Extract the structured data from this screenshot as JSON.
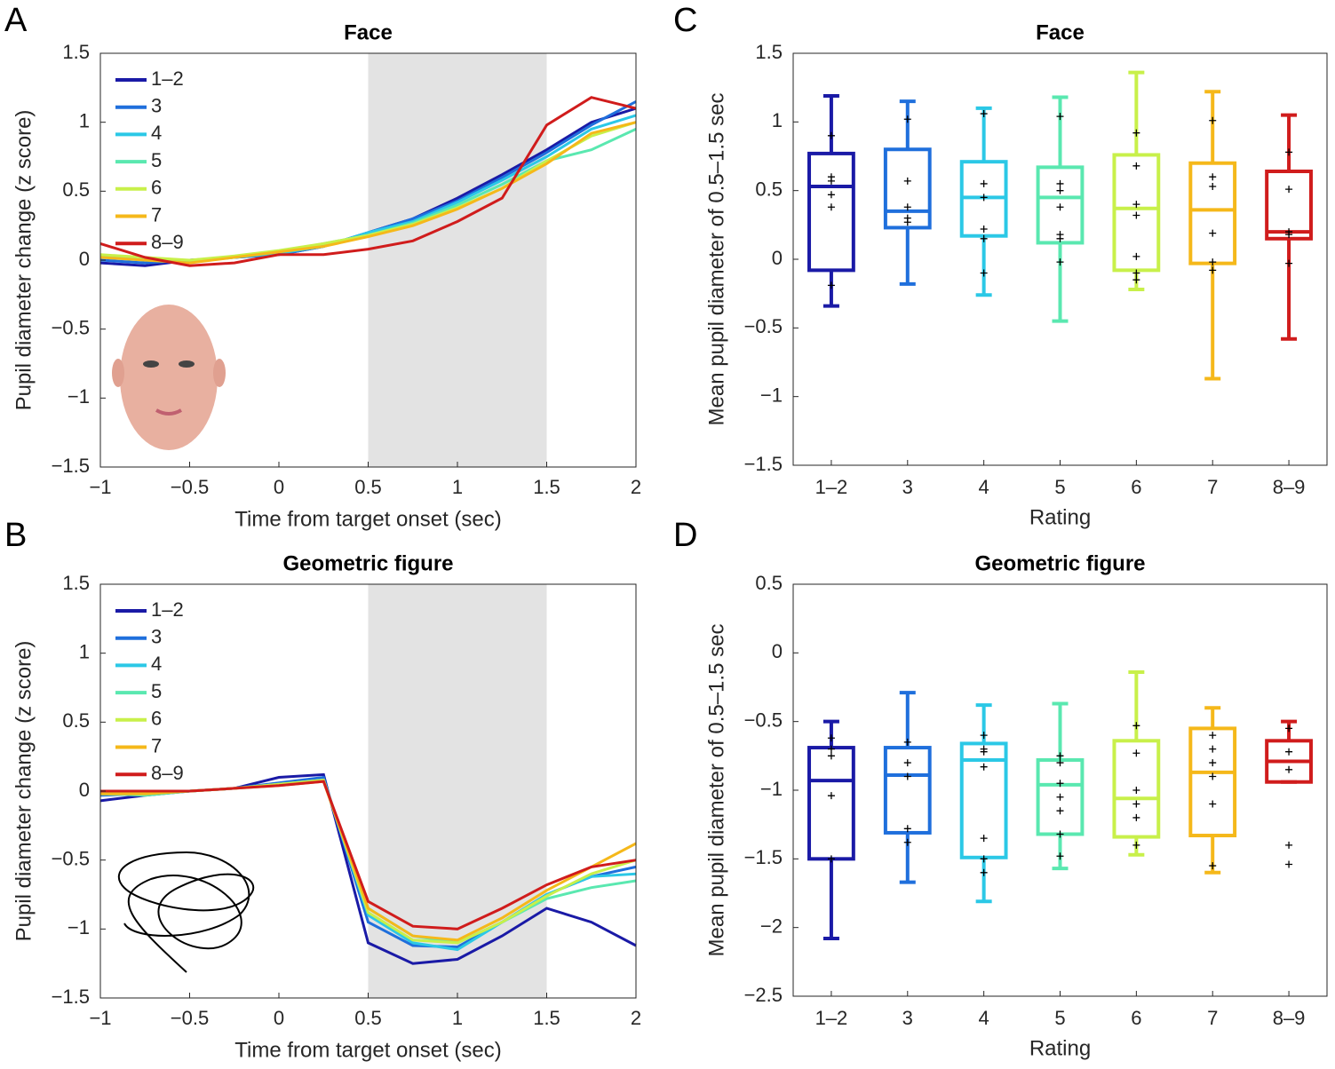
{
  "chart_data": [
    {
      "type": "line",
      "panel": "A",
      "title": "Face",
      "xlabel": "Time from target onset (sec)",
      "ylabel": "Pupil diameter change (z score)",
      "xlim": [
        -1,
        2
      ],
      "ylim": [
        -1.5,
        1.5
      ],
      "xticks": [
        {
          "value": -1,
          "label": "−1"
        },
        {
          "value": -0.5,
          "label": "−0.5"
        },
        0,
        0.5,
        1,
        1.5,
        2
      ],
      "yticks": [
        {
          "value": -1.5,
          "label": "−1.5"
        },
        {
          "value": -1,
          "label": "−1"
        },
        {
          "value": -0.5,
          "label": "−0.5"
        },
        0,
        0.5,
        1,
        1.5
      ],
      "highlight": [
        0.5,
        1.5
      ],
      "legend": "upper left",
      "x": [
        -1,
        -0.75,
        -0.5,
        -0.25,
        0,
        0.25,
        0.5,
        0.75,
        1,
        1.25,
        1.5,
        1.75,
        2
      ],
      "series": [
        {
          "name": "1–2",
          "color": "#1a1aa6",
          "values": [
            -0.02,
            -0.04,
            0,
            0.02,
            0.04,
            0.1,
            0.2,
            0.3,
            0.45,
            0.62,
            0.8,
            1.0,
            1.1
          ]
        },
        {
          "name": "3",
          "color": "#1f6fdc",
          "values": [
            0,
            -0.02,
            0,
            0.02,
            0.04,
            0.1,
            0.2,
            0.3,
            0.43,
            0.6,
            0.78,
            0.98,
            1.15
          ]
        },
        {
          "name": "4",
          "color": "#2bc8e6",
          "values": [
            0.02,
            0,
            -0.01,
            0.02,
            0.05,
            0.1,
            0.2,
            0.28,
            0.42,
            0.58,
            0.75,
            0.95,
            1.05
          ]
        },
        {
          "name": "5",
          "color": "#5ae8b0",
          "values": [
            0.03,
            0,
            -0.01,
            0.02,
            0.06,
            0.12,
            0.18,
            0.27,
            0.4,
            0.55,
            0.72,
            0.8,
            0.95
          ]
        },
        {
          "name": "6",
          "color": "#c8f04a",
          "values": [
            0.04,
            0.02,
            0,
            0.03,
            0.07,
            0.12,
            0.18,
            0.26,
            0.38,
            0.52,
            0.72,
            0.9,
            1.0
          ]
        },
        {
          "name": "7",
          "color": "#f5b81a",
          "values": [
            0.02,
            0,
            -0.02,
            0.02,
            0.06,
            0.1,
            0.17,
            0.25,
            0.37,
            0.52,
            0.7,
            0.92,
            1.0
          ]
        },
        {
          "name": "8–9",
          "color": "#d01c1c",
          "values": [
            0.12,
            0.02,
            -0.04,
            -0.02,
            0.04,
            0.04,
            0.08,
            0.14,
            0.28,
            0.45,
            0.98,
            1.18,
            1.1
          ]
        }
      ]
    },
    {
      "type": "line",
      "panel": "B",
      "title": "Geometric figure",
      "xlabel": "Time from target onset (sec)",
      "ylabel": "Pupil diameter change (z score)",
      "xlim": [
        -1,
        2
      ],
      "ylim": [
        -1.5,
        1.5
      ],
      "xticks": [
        {
          "value": -1,
          "label": "−1"
        },
        {
          "value": -0.5,
          "label": "−0.5"
        },
        0,
        0.5,
        1,
        1.5,
        2
      ],
      "yticks": [
        {
          "value": -1.5,
          "label": "−1.5"
        },
        {
          "value": -1,
          "label": "−1"
        },
        {
          "value": -0.5,
          "label": "−0.5"
        },
        0,
        0.5,
        1,
        1.5
      ],
      "highlight": [
        0.5,
        1.5
      ],
      "legend": "upper left",
      "x": [
        -1,
        -0.75,
        -0.5,
        -0.25,
        0,
        0.25,
        0.5,
        0.75,
        1,
        1.25,
        1.5,
        1.75,
        2
      ],
      "series": [
        {
          "name": "1–2",
          "color": "#1a1aa6",
          "values": [
            -0.07,
            -0.03,
            0,
            0.02,
            0.1,
            0.12,
            -1.1,
            -1.25,
            -1.22,
            -1.05,
            -0.85,
            -0.95,
            -1.12
          ]
        },
        {
          "name": "3",
          "color": "#1f6fdc",
          "values": [
            -0.03,
            -0.02,
            0,
            0.02,
            0.06,
            0.1,
            -0.95,
            -1.12,
            -1.13,
            -0.95,
            -0.75,
            -0.62,
            -0.55
          ]
        },
        {
          "name": "4",
          "color": "#2bc8e6",
          "values": [
            -0.02,
            -0.02,
            0,
            0.02,
            0.05,
            0.08,
            -0.9,
            -1.1,
            -1.15,
            -0.95,
            -0.75,
            -0.62,
            -0.6
          ]
        },
        {
          "name": "5",
          "color": "#5ae8b0",
          "values": [
            -0.02,
            -0.03,
            0,
            0.02,
            0.05,
            0.08,
            -0.85,
            -1.05,
            -1.1,
            -0.95,
            -0.78,
            -0.7,
            -0.65
          ]
        },
        {
          "name": "6",
          "color": "#c8f04a",
          "values": [
            0,
            -0.01,
            0,
            0.02,
            0.05,
            0.08,
            -0.88,
            -1.08,
            -1.1,
            -0.95,
            -0.76,
            -0.6,
            -0.5
          ]
        },
        {
          "name": "7",
          "color": "#f5b81a",
          "values": [
            -0.02,
            -0.02,
            0,
            0.02,
            0.04,
            0.07,
            -0.85,
            -1.05,
            -1.08,
            -0.92,
            -0.72,
            -0.55,
            -0.38
          ]
        },
        {
          "name": "8–9",
          "color": "#d01c1c",
          "values": [
            0,
            0,
            0,
            0.02,
            0.04,
            0.07,
            -0.8,
            -0.98,
            -1.0,
            -0.85,
            -0.68,
            -0.55,
            -0.5
          ]
        }
      ]
    },
    {
      "type": "box",
      "panel": "C",
      "title": "Face",
      "xlabel": "Rating",
      "ylabel": "Mean pupil diameter of 0.5–1.5 sec",
      "ylim": [
        -1.5,
        1.5
      ],
      "yticks": [
        {
          "value": -1.5,
          "label": "−1.5"
        },
        {
          "value": -1,
          "label": "−1"
        },
        {
          "value": -0.5,
          "label": "−0.5"
        },
        0,
        0.5,
        1,
        1.5
      ],
      "categories": [
        "1–2",
        "3",
        "4",
        "5",
        "6",
        "7",
        "8–9"
      ],
      "colors": [
        "#1a1aa6",
        "#1f6fdc",
        "#2bc8e6",
        "#5ae8b0",
        "#c8f04a",
        "#f5b81a",
        "#d01c1c"
      ],
      "boxes": [
        {
          "min": -0.34,
          "q1": -0.08,
          "median": 0.53,
          "q3": 0.77,
          "max": 1.19,
          "points": [
            0.9,
            0.6,
            0.57,
            0.47,
            0.38,
            -0.19
          ]
        },
        {
          "min": -0.18,
          "q1": 0.23,
          "median": 0.35,
          "q3": 0.8,
          "max": 1.15,
          "points": [
            1.02,
            0.57,
            0.38,
            0.3,
            0.27
          ]
        },
        {
          "min": -0.26,
          "q1": 0.17,
          "median": 0.45,
          "q3": 0.71,
          "max": 1.1,
          "points": [
            1.06,
            0.55,
            0.45,
            0.22,
            0.15,
            -0.1
          ]
        },
        {
          "min": -0.45,
          "q1": 0.12,
          "median": 0.45,
          "q3": 0.67,
          "max": 1.18,
          "points": [
            1.04,
            0.55,
            0.5,
            0.38,
            0.18,
            0.15,
            -0.02
          ]
        },
        {
          "min": -0.22,
          "q1": -0.08,
          "median": 0.37,
          "q3": 0.76,
          "max": 1.36,
          "points": [
            0.92,
            0.68,
            0.4,
            0.32,
            0.02,
            -0.1,
            -0.15
          ]
        },
        {
          "min": -0.87,
          "q1": -0.03,
          "median": 0.36,
          "q3": 0.7,
          "max": 1.22,
          "points": [
            1.01,
            0.6,
            0.53,
            0.19,
            -0.02,
            -0.08
          ]
        },
        {
          "min": -0.58,
          "q1": 0.15,
          "median": 0.2,
          "q3": 0.64,
          "max": 1.05,
          "points": [
            0.78,
            0.51,
            0.2,
            0.18,
            -0.03
          ]
        }
      ]
    },
    {
      "type": "box",
      "panel": "D",
      "title": "Geometric figure",
      "xlabel": "Rating",
      "ylabel": "Mean pupil diameter of 0.5–1.5 sec",
      "ylim": [
        -2.5,
        0.5
      ],
      "yticks": [
        {
          "value": -2.5,
          "label": "−2.5"
        },
        {
          "value": -2,
          "label": "−2"
        },
        {
          "value": -1.5,
          "label": "−1.5"
        },
        {
          "value": -1,
          "label": "−1"
        },
        {
          "value": -0.5,
          "label": "−0.5"
        },
        0,
        0.5
      ],
      "categories": [
        "1–2",
        "3",
        "4",
        "5",
        "6",
        "7",
        "8–9"
      ],
      "colors": [
        "#1a1aa6",
        "#1f6fdc",
        "#2bc8e6",
        "#5ae8b0",
        "#c8f04a",
        "#f5b81a",
        "#d01c1c"
      ],
      "boxes": [
        {
          "min": -2.08,
          "q1": -1.5,
          "median": -0.93,
          "q3": -0.69,
          "max": -0.5,
          "points": [
            -0.62,
            -0.7,
            -0.75,
            -1.04,
            -1.5
          ]
        },
        {
          "min": -1.67,
          "q1": -1.31,
          "median": -0.89,
          "q3": -0.69,
          "max": -0.29,
          "points": [
            -0.65,
            -0.8,
            -0.9,
            -1.28,
            -1.38
          ]
        },
        {
          "min": -1.81,
          "q1": -1.49,
          "median": -0.78,
          "q3": -0.66,
          "max": -0.38,
          "points": [
            -0.6,
            -0.7,
            -0.72,
            -0.83,
            -1.35,
            -1.5,
            -1.6
          ]
        },
        {
          "min": -1.57,
          "q1": -1.32,
          "median": -0.96,
          "q3": -0.78,
          "max": -0.37,
          "points": [
            -0.75,
            -0.8,
            -0.95,
            -1.05,
            -1.15,
            -1.32,
            -1.48
          ]
        },
        {
          "min": -1.47,
          "q1": -1.34,
          "median": -1.06,
          "q3": -0.64,
          "max": -0.14,
          "points": [
            -0.53,
            -0.73,
            -1.0,
            -1.1,
            -1.2,
            -1.4
          ]
        },
        {
          "min": -1.6,
          "q1": -1.33,
          "median": -0.87,
          "q3": -0.55,
          "max": -0.4,
          "points": [
            -0.6,
            -0.7,
            -0.8,
            -0.9,
            -1.1,
            -1.55
          ]
        },
        {
          "min": -0.94,
          "q1": -0.94,
          "median": -0.79,
          "q3": -0.64,
          "max": -0.5,
          "points": [
            -0.55,
            -0.72,
            -0.85,
            -1.4,
            -1.54
          ]
        }
      ]
    }
  ]
}
